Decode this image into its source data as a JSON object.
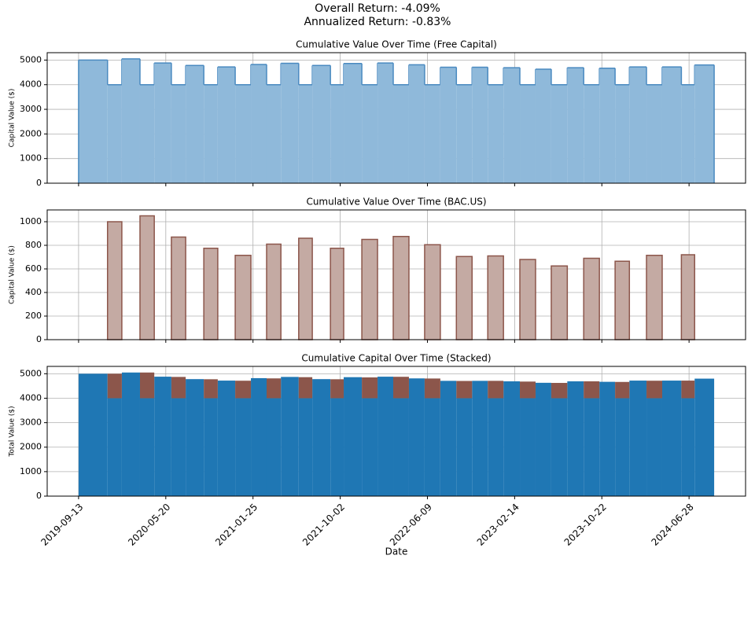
{
  "suptitle": [
    "Overall Return: -4.09%",
    "Annualized Return: -0.83%"
  ],
  "chart_data": [
    {
      "type": "step_area",
      "title": "Cumulative Value Over Time (Free Capital)",
      "ylabel": "Capital Value ($)",
      "x": [
        "2019-09-13",
        "2019-12-05",
        "2020-01-15",
        "2020-03-07",
        "2020-04-17",
        "2020-06-05",
        "2020-07-16",
        "2020-09-06",
        "2020-10-16",
        "2020-12-05",
        "2021-01-19",
        "2021-03-05",
        "2021-04-15",
        "2021-06-05",
        "2021-07-14",
        "2021-09-04",
        "2021-10-12",
        "2021-12-03",
        "2022-01-17",
        "2022-03-03",
        "2022-04-17",
        "2022-06-01",
        "2022-07-16",
        "2022-08-31",
        "2022-10-15",
        "2022-11-29",
        "2023-01-13",
        "2023-03-01",
        "2023-04-15",
        "2023-05-30",
        "2023-07-15",
        "2023-08-31",
        "2023-10-15",
        "2023-11-29",
        "2024-01-09",
        "2024-02-27",
        "2024-04-12",
        "2024-06-06",
        "2024-07-14",
        "2024-09-08"
      ],
      "series": [
        {
          "name": "Free Capital",
          "color": "#8fb9da",
          "values": [
            5000,
            4000,
            5050,
            4000,
            4880,
            4000,
            4780,
            4000,
            4720,
            4000,
            4820,
            4000,
            4870,
            4000,
            4780,
            4000,
            4860,
            4000,
            4880,
            4000,
            4810,
            4000,
            4710,
            4000,
            4710,
            4000,
            4690,
            4000,
            4630,
            4000,
            4690,
            4000,
            4670,
            4000,
            4720,
            4000,
            4720,
            4000,
            4800,
            4800
          ]
        }
      ],
      "xlim": [
        "2019-06-15",
        "2024-12-07"
      ],
      "xticks": [
        "2019-09-13",
        "2020-05-20",
        "2021-01-25",
        "2021-10-02",
        "2022-06-09",
        "2023-02-14",
        "2023-10-22",
        "2024-06-28"
      ],
      "ylim": [
        0,
        5300
      ],
      "yticks": [
        0,
        1000,
        2000,
        3000,
        4000,
        5000
      ],
      "grid": true
    },
    {
      "type": "bar",
      "title": "Cumulative Value Over Time (BAC.US)",
      "ylabel": "Capital Value ($)",
      "x": [
        "2019-09-13",
        "2019-12-05",
        "2020-01-15",
        "2020-03-07",
        "2020-04-17",
        "2020-06-05",
        "2020-07-16",
        "2020-09-06",
        "2020-10-16",
        "2020-12-05",
        "2021-01-19",
        "2021-03-05",
        "2021-04-15",
        "2021-06-05",
        "2021-07-14",
        "2021-09-04",
        "2021-10-12",
        "2021-12-03",
        "2022-01-17",
        "2022-03-03",
        "2022-04-17",
        "2022-06-01",
        "2022-07-16",
        "2022-08-31",
        "2022-10-15",
        "2022-11-29",
        "2023-01-13",
        "2023-03-01",
        "2023-04-15",
        "2023-05-30",
        "2023-07-15",
        "2023-08-31",
        "2023-10-15",
        "2023-11-29",
        "2024-01-09",
        "2024-02-27",
        "2024-04-12",
        "2024-06-06",
        "2024-07-14",
        "2024-09-08"
      ],
      "series": [
        {
          "name": "BAC.US",
          "color": "#c4aaa3",
          "values": [
            0,
            1000,
            0,
            1050,
            0,
            870,
            0,
            775,
            0,
            715,
            0,
            810,
            0,
            860,
            0,
            775,
            0,
            850,
            0,
            875,
            0,
            805,
            0,
            705,
            0,
            710,
            0,
            680,
            0,
            625,
            0,
            690,
            0,
            665,
            0,
            715,
            0,
            720,
            0,
            0
          ]
        }
      ],
      "xlim": [
        "2019-06-15",
        "2024-12-07"
      ],
      "xticks": [
        "2019-09-13",
        "2020-05-20",
        "2021-01-25",
        "2021-10-02",
        "2022-06-09",
        "2023-02-14",
        "2023-10-22",
        "2024-06-28"
      ],
      "ylim": [
        0,
        1100
      ],
      "yticks": [
        0,
        200,
        400,
        600,
        800,
        1000
      ],
      "grid": true
    },
    {
      "type": "stacked_bar",
      "title": "Cumulative Capital Over Time (Stacked)",
      "ylabel": "Total Value ($)",
      "xlabel": "Date",
      "x": [
        "2019-09-13",
        "2019-12-05",
        "2020-01-15",
        "2020-03-07",
        "2020-04-17",
        "2020-06-05",
        "2020-07-16",
        "2020-09-06",
        "2020-10-16",
        "2020-12-05",
        "2021-01-19",
        "2021-03-05",
        "2021-04-15",
        "2021-06-05",
        "2021-07-14",
        "2021-09-04",
        "2021-10-12",
        "2021-12-03",
        "2022-01-17",
        "2022-03-03",
        "2022-04-17",
        "2022-06-01",
        "2022-07-16",
        "2022-08-31",
        "2022-10-15",
        "2022-11-29",
        "2023-01-13",
        "2023-03-01",
        "2023-04-15",
        "2023-05-30",
        "2023-07-15",
        "2023-08-31",
        "2023-10-15",
        "2023-11-29",
        "2024-01-09",
        "2024-02-27",
        "2024-04-12",
        "2024-06-06",
        "2024-07-14",
        "2024-09-08"
      ],
      "series": [
        {
          "name": "Free Capital",
          "color": "#1f77b4",
          "values": [
            5000,
            4000,
            5050,
            4000,
            4880,
            4000,
            4780,
            4000,
            4720,
            4000,
            4820,
            4000,
            4870,
            4000,
            4780,
            4000,
            4860,
            4000,
            4880,
            4000,
            4810,
            4000,
            4710,
            4000,
            4710,
            4000,
            4690,
            4000,
            4630,
            4000,
            4690,
            4000,
            4670,
            4000,
            4720,
            4000,
            4720,
            4000,
            4800,
            4800
          ]
        },
        {
          "name": "BAC.US",
          "color": "#8c564b",
          "values": [
            0,
            1000,
            0,
            1050,
            0,
            870,
            0,
            775,
            0,
            715,
            0,
            810,
            0,
            860,
            0,
            775,
            0,
            850,
            0,
            875,
            0,
            805,
            0,
            705,
            0,
            710,
            0,
            680,
            0,
            625,
            0,
            690,
            0,
            665,
            0,
            715,
            0,
            720,
            0,
            0
          ]
        }
      ],
      "xlim": [
        "2019-06-15",
        "2024-12-07"
      ],
      "xticks": [
        "2019-09-13",
        "2020-05-20",
        "2021-01-25",
        "2021-10-02",
        "2022-06-09",
        "2023-02-14",
        "2023-10-22",
        "2024-06-28"
      ],
      "ylim": [
        0,
        5300
      ],
      "yticks": [
        0,
        1000,
        2000,
        3000,
        4000,
        5000
      ],
      "grid": true
    }
  ]
}
